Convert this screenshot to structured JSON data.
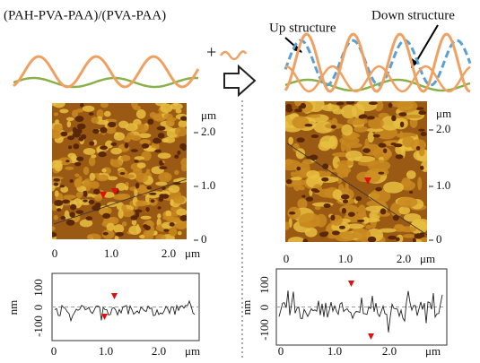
{
  "plus": "+",
  "left": {
    "title": "(PAH-PVA-PAA)/(PVA-PAA)",
    "image_y_ticks": [
      "2.0",
      "1.0",
      "0"
    ],
    "image_y_unit": "μm",
    "image_x_ticks": [
      "0",
      "1.0",
      "2.0"
    ],
    "image_x_unit": "μm",
    "profile_y_ticks": [
      "100",
      "0",
      "-100"
    ],
    "profile_y_unit": "nm",
    "profile_x_ticks": [
      "0",
      "1.0",
      "2.0"
    ],
    "profile_x_unit": "μm"
  },
  "right": {
    "up_label": "Up structure",
    "down_label": "Down structure",
    "image_y_ticks": [
      "2.0",
      "1.0",
      "0"
    ],
    "image_y_unit": "μm",
    "image_x_ticks": [
      "0",
      "1.0",
      "2.0"
    ],
    "image_x_unit": "μm",
    "profile_y_ticks": [
      "100",
      "0",
      "-100"
    ],
    "profile_y_unit": "nm",
    "profile_x_ticks": [
      "0",
      "1.0",
      "2.0"
    ],
    "profile_x_unit": "μm"
  }
}
